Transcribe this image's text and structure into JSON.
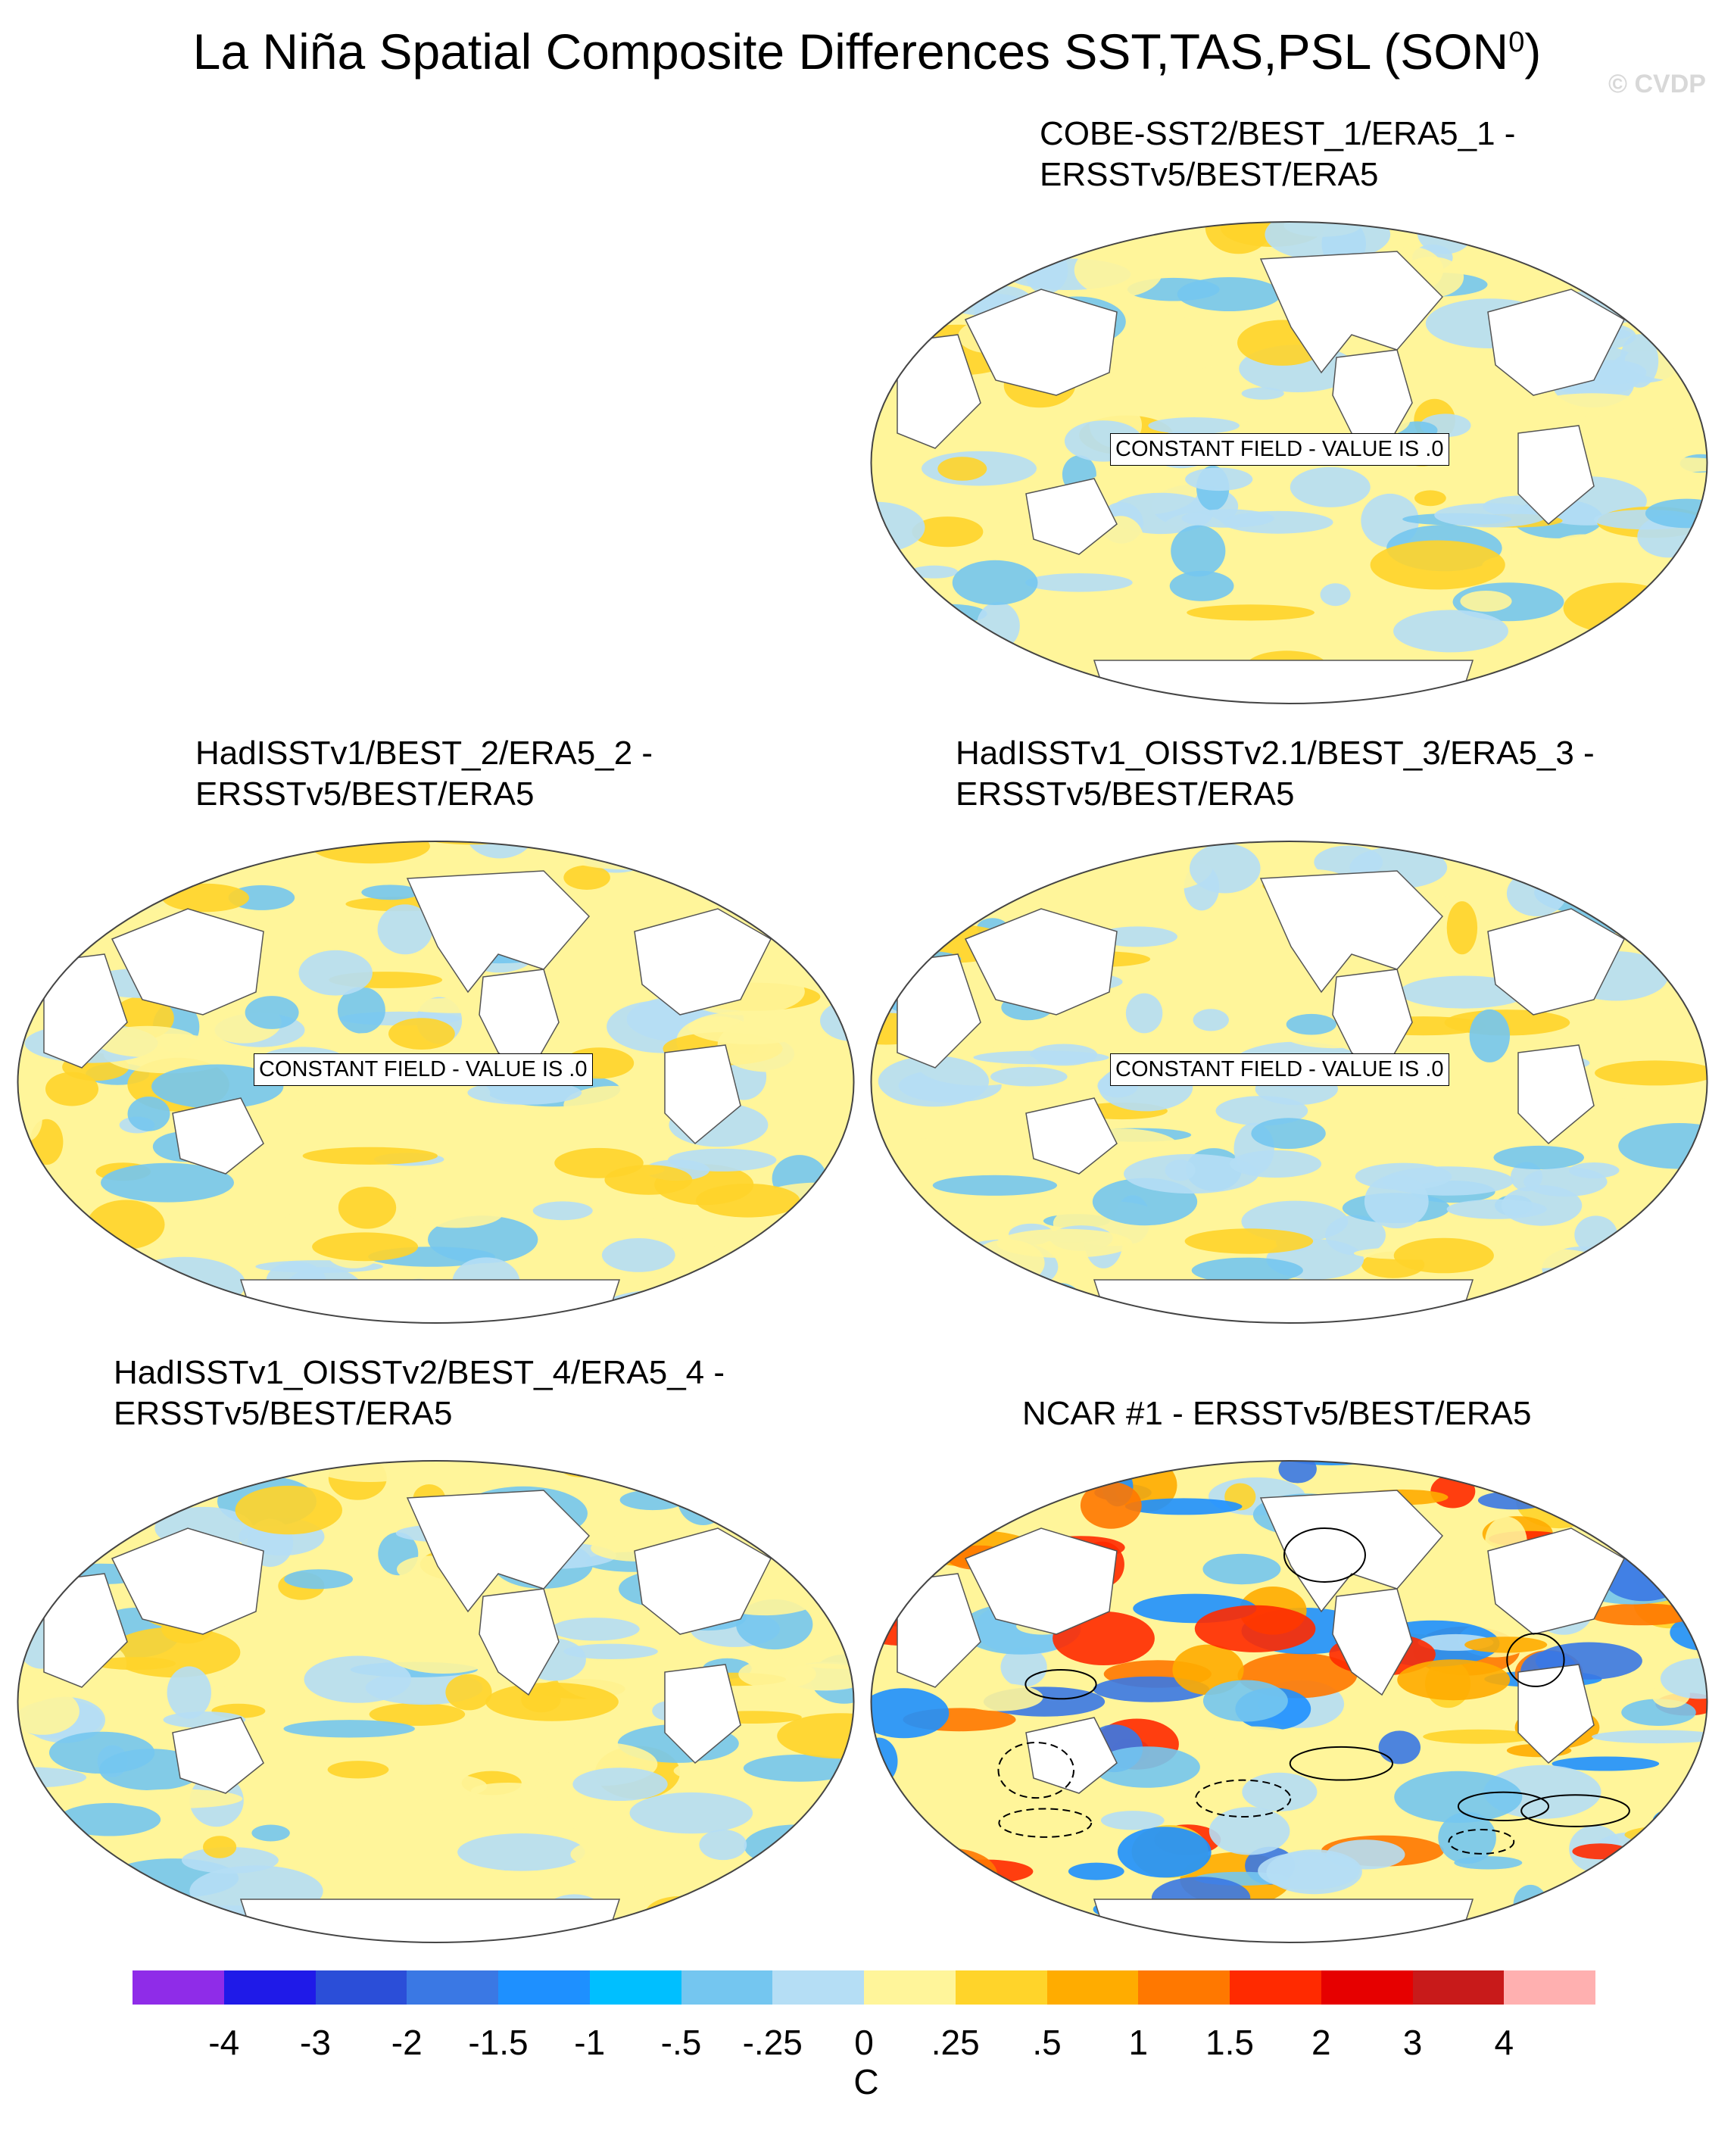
{
  "figure": {
    "title": "La Niña Spatial Composite Differences SST,TAS,PSL (SON",
    "title_superscript": "0",
    "title_close": ")",
    "copyright": "© CVDP"
  },
  "panels": [
    {
      "title": "COBE-SST2/BEST_1/ERA5_1 -\nERSSTv5/BEST/ERA5",
      "note": "CONSTANT FIELD - VALUE IS .0"
    },
    {
      "title": "HadISSTv1/BEST_2/ERA5_2 -\nERSSTv5/BEST/ERA5",
      "note": "CONSTANT FIELD - VALUE IS .0"
    },
    {
      "title": "HadISSTv1_OISSTv2.1/BEST_3/ERA5_3 -\nERSSTv5/BEST/ERA5",
      "note": "CONSTANT FIELD - VALUE IS .0"
    },
    {
      "title": "HadISSTv1_OISSTv2/BEST_4/ERA5_4 -\nERSSTv5/BEST/ERA5",
      "note": ""
    },
    {
      "title": "NCAR #1 - ERSSTv5/BEST/ERA5",
      "note": ""
    }
  ],
  "chart_data": {
    "type": "heatmap",
    "colorbar": {
      "units": "C",
      "tick_labels": [
        "-4",
        "-3",
        "-2",
        "-1.5",
        "-1",
        "-.5",
        "-.25",
        "0",
        ".25",
        ".5",
        "1",
        "1.5",
        "2",
        "3",
        "4"
      ],
      "colors": [
        "#8f2ce8",
        "#1f1ae8",
        "#2b4ed8",
        "#3a78e4",
        "#1e90ff",
        "#00bfff",
        "#74c6f0",
        "#b5def5",
        "#fff59a",
        "#ffd42a",
        "#ffac00",
        "#ff7800",
        "#ff2a00",
        "#e60000",
        "#c81a1a",
        "#ffb0b0"
      ]
    }
  }
}
